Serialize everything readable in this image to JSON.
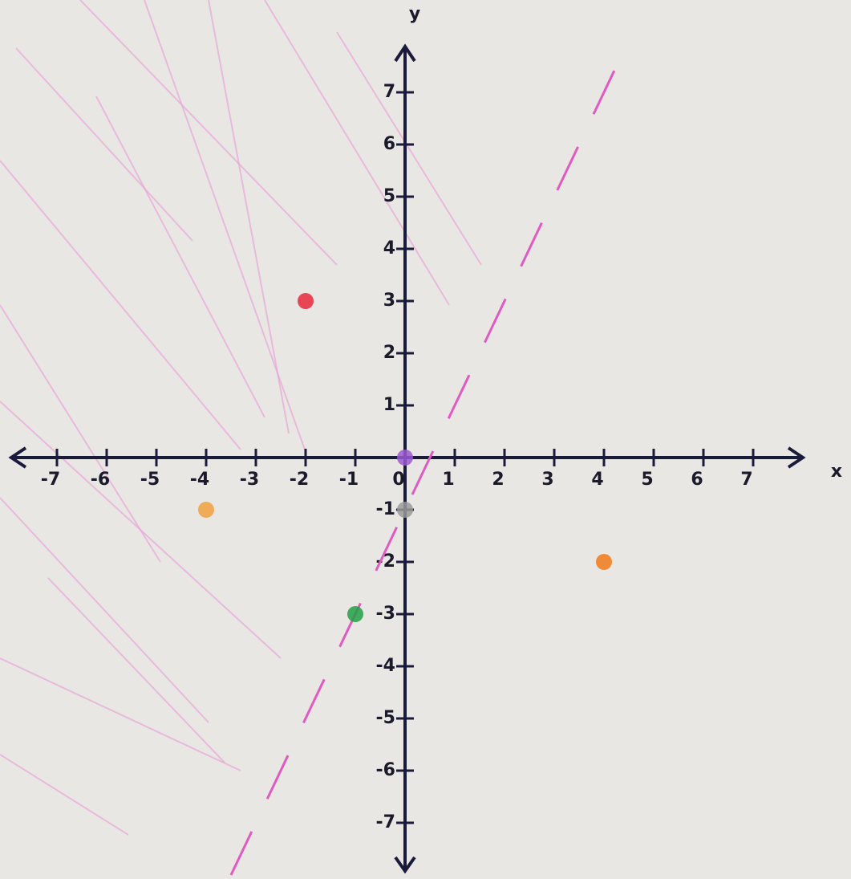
{
  "chart_data": {
    "type": "scatter",
    "x_label": "x",
    "y_label": "y",
    "xlim": [
      -8,
      8
    ],
    "ylim": [
      -8,
      8
    ],
    "xticks": [
      -7,
      -6,
      -5,
      -4,
      -3,
      -2,
      -1,
      0,
      1,
      2,
      3,
      4,
      5,
      6,
      7
    ],
    "yticks": [
      -7,
      -6,
      -5,
      -4,
      -3,
      -2,
      -1,
      1,
      2,
      3,
      4,
      5,
      6,
      7
    ],
    "points": {
      "x": [
        -2,
        0,
        0,
        -1,
        4,
        -4
      ],
      "values": [
        3,
        0,
        -1,
        -3,
        -2,
        -1
      ],
      "colors": [
        "#e8283c",
        "#9b59d0",
        "#9a9a9a",
        "#22a045",
        "#f07a1a",
        "#f0a040"
      ]
    },
    "line": {
      "x": [
        -3.5,
        4.5
      ],
      "values": [
        -8,
        8
      ],
      "color": "#e05ac0",
      "dashed": true
    }
  }
}
